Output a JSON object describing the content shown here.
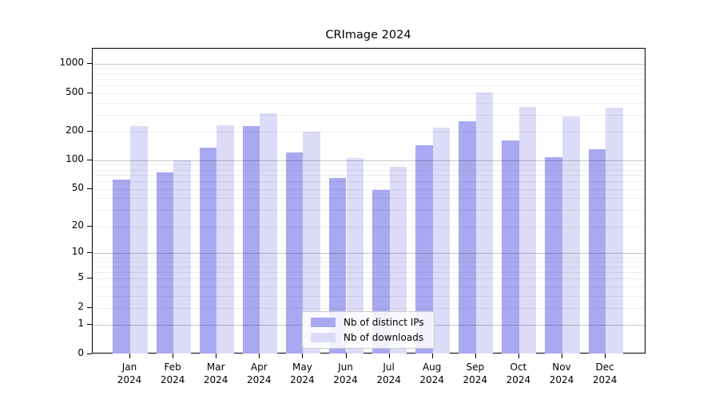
{
  "title": "CRImage 2024",
  "colors": {
    "distinct_ips": "#a9a9f1",
    "downloads": "#dcdcf8",
    "grid_major": "#c6c6c6",
    "grid_minor": "#ebebeb",
    "axis": "#000000"
  },
  "legend": {
    "entries": [
      {
        "label": "Nb of distinct IPs",
        "color": "#a9a9f1"
      },
      {
        "label": "Nb of downloads",
        "color": "#dcdcf8"
      }
    ]
  },
  "chart_data": {
    "type": "bar",
    "title": "CRImage 2024",
    "months": [
      "Jan",
      "Feb",
      "Mar",
      "Apr",
      "May",
      "Jun",
      "Jul",
      "Aug",
      "Sep",
      "Oct",
      "Nov",
      "Dec"
    ],
    "year": "2024",
    "series": [
      {
        "name": "Nb of distinct IPs",
        "color": "#a9a9f1",
        "values": [
          63,
          75,
          137,
          227,
          120,
          65,
          49,
          145,
          254,
          160,
          108,
          132
        ]
      },
      {
        "name": "Nb of downloads",
        "color": "#dcdcf8",
        "values": [
          230,
          100,
          232,
          308,
          199,
          105,
          86,
          218,
          510,
          362,
          288,
          355
        ]
      }
    ],
    "y_ticks": [
      0,
      1,
      2,
      5,
      10,
      20,
      50,
      100,
      200,
      500,
      1000
    ],
    "y_scale": "log10(1+x)",
    "ylim": [
      0,
      1400
    ],
    "grid": true,
    "legend_position": "bottom-center",
    "xlabel": "",
    "ylabel": ""
  }
}
